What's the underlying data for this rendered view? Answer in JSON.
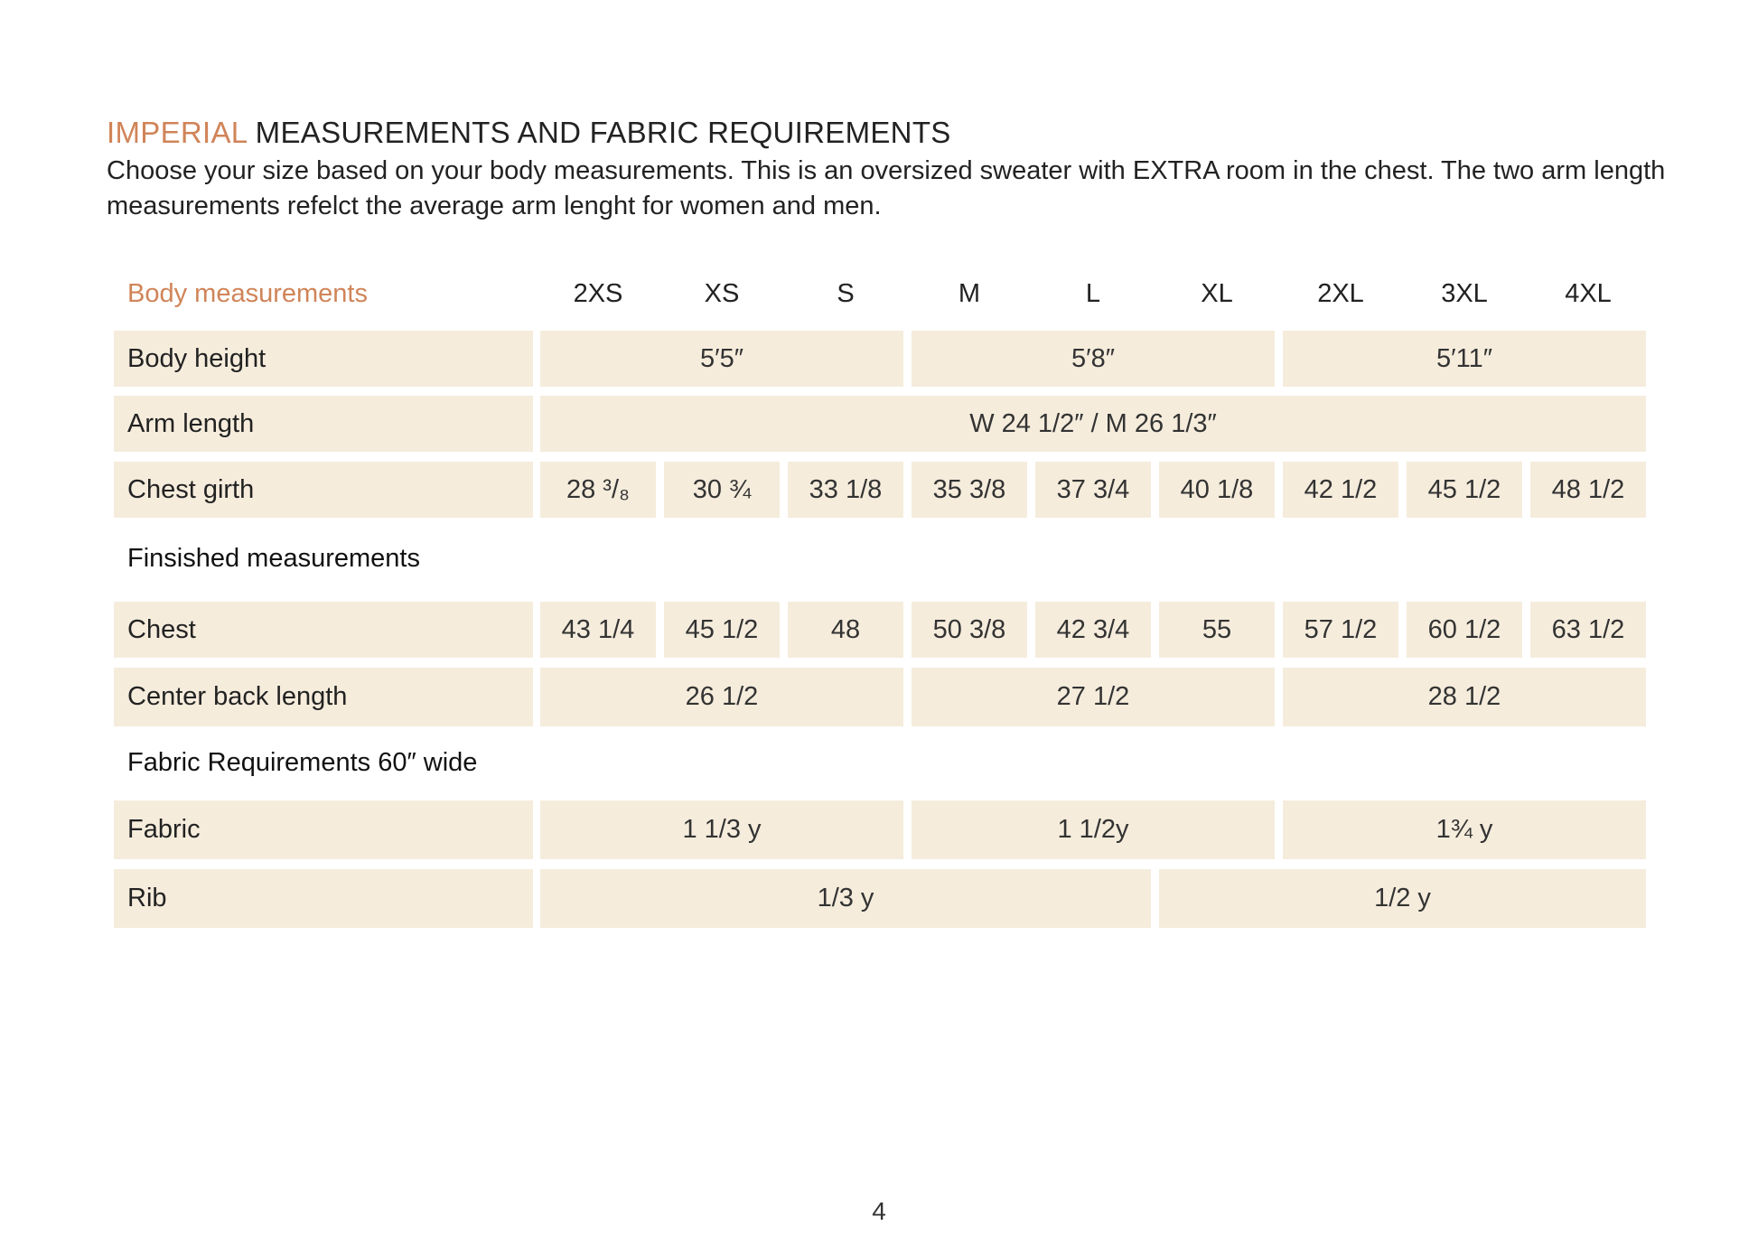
{
  "heading": {
    "accent": "IMPERIAL",
    "rest": " MEASUREMENTS AND FABRIC REQUIREMENTS"
  },
  "intro": "Choose your size based on your body measurements. This is an oversized sweater with EXTRA room in the chest. The two arm length measurements refelct the average arm lenght for women and men.",
  "table": {
    "header_label": "Body measurements",
    "sizes": [
      "2XS",
      "XS",
      "S",
      "M",
      "L",
      "XL",
      "2XL",
      "3XL",
      "4XL"
    ],
    "body_height": {
      "label": "Body height",
      "values": [
        "5′5″",
        "5′8″",
        "5′11″"
      ]
    },
    "arm_length": {
      "label": "Arm length",
      "value": "W 24 1/2″  /  M 26 1/3″"
    },
    "chest_girth": {
      "label": "Chest girth",
      "values": [
        "28 ³/₈",
        "30 ¾",
        "33 1/8",
        "35 3/8",
        "37 3/4",
        "40 1/8",
        "42 1/2",
        "45 1/2",
        "48 1/2"
      ]
    },
    "finished_section": "Finsished  measurements",
    "chest": {
      "label": "Chest",
      "values": [
        "43 1/4",
        "45 1/2",
        "48",
        "50 3/8",
        "42 3/4",
        "55",
        "57 1/2",
        "60 1/2",
        "63 1/2"
      ]
    },
    "center_back_length": {
      "label": "Center back length",
      "values": [
        "26 1/2",
        "27 1/2",
        "28 1/2"
      ]
    },
    "fabric_section": "Fabric Requirements 60″ wide",
    "fabric": {
      "label": "Fabric",
      "values": [
        "1 1/3  y",
        "1 1/2y",
        "1¾ y"
      ]
    },
    "rib": {
      "label": "Rib",
      "values": [
        "1/3 y",
        "1/2 y"
      ]
    }
  },
  "page_number": "4"
}
